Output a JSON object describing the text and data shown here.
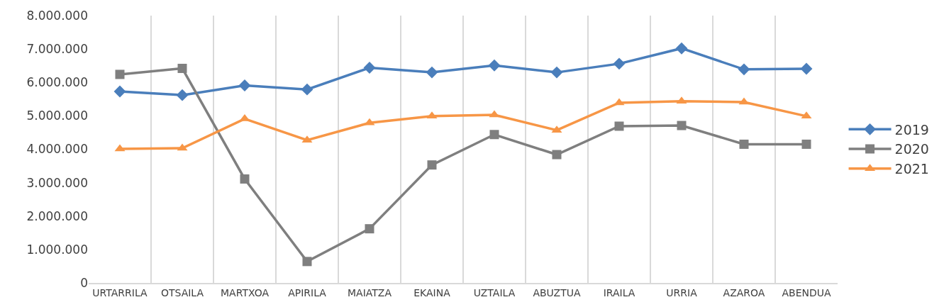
{
  "chart_data": {
    "type": "line",
    "categories": [
      "URTARRILA",
      "OTSAILA",
      "MARTXOA",
      "APIRILA",
      "MAIATZA",
      "EKAINA",
      "UZTAILA",
      "ABUZTUA",
      "IRAILA",
      "URRIA",
      "AZAROA",
      "ABENDUA"
    ],
    "series": [
      {
        "name": "2019",
        "color": "#4a7ebb",
        "marker": "diamond",
        "values": [
          5730000,
          5620000,
          5910000,
          5790000,
          6440000,
          6300000,
          6510000,
          6300000,
          6560000,
          7020000,
          6390000,
          6410000
        ]
      },
      {
        "name": "2020",
        "color": "#7f7f7f",
        "marker": "square",
        "values": [
          6240000,
          6420000,
          3110000,
          640000,
          1620000,
          3530000,
          4440000,
          3840000,
          4690000,
          4710000,
          4150000,
          4150000
        ]
      },
      {
        "name": "2021",
        "color": "#f79646",
        "marker": "triangle",
        "values": [
          4010000,
          4030000,
          4910000,
          4270000,
          4790000,
          4990000,
          5030000,
          4570000,
          5390000,
          5440000,
          5410000,
          4990000
        ]
      }
    ],
    "ylim": [
      0,
      8000000
    ],
    "yticks": [
      0,
      {
        "value": 1000000,
        "label": "1.000.000"
      },
      {
        "value": 2000000,
        "label": "2.000.000"
      },
      {
        "value": 3000000,
        "label": "3.000.000"
      },
      {
        "value": 4000000,
        "label": "4.000.000"
      },
      {
        "value": 5000000,
        "label": "5.000.000"
      },
      {
        "value": 6000000,
        "label": "6.000.000"
      },
      {
        "value": 7000000,
        "label": "7.000.000"
      },
      {
        "value": 8000000,
        "label": "8.000.000"
      }
    ],
    "grid": "x",
    "legend": "right",
    "line_style": "solid"
  }
}
